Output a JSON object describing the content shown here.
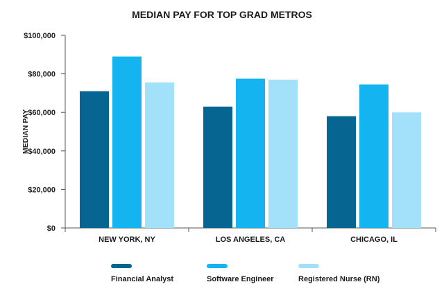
{
  "chart_data": {
    "type": "bar",
    "title": "MEDIAN PAY FOR TOP GRAD METROS",
    "xlabel": "",
    "ylabel": "MEDIAN PAY",
    "ylim": [
      0,
      100000
    ],
    "ytick_values": [
      0,
      20000,
      40000,
      60000,
      80000,
      100000
    ],
    "ytick_labels": [
      "$0",
      "$20,000",
      "$40,000",
      "$60,000",
      "$80,000",
      "$100,000"
    ],
    "categories": [
      "NEW YORK, NY",
      "LOS ANGELES, CA",
      "CHICAGO, IL"
    ],
    "series": [
      {
        "name": "Financial Analyst",
        "color": "#076591",
        "values": [
          71000,
          63000,
          58000
        ]
      },
      {
        "name": "Software Engineer",
        "color": "#14b4f0",
        "values": [
          89000,
          77500,
          74500
        ]
      },
      {
        "name": "Registered Nurse (RN)",
        "color": "#a3e0fa",
        "values": [
          75500,
          77000,
          60000
        ]
      }
    ],
    "grid": false,
    "legend_position": "bottom"
  }
}
